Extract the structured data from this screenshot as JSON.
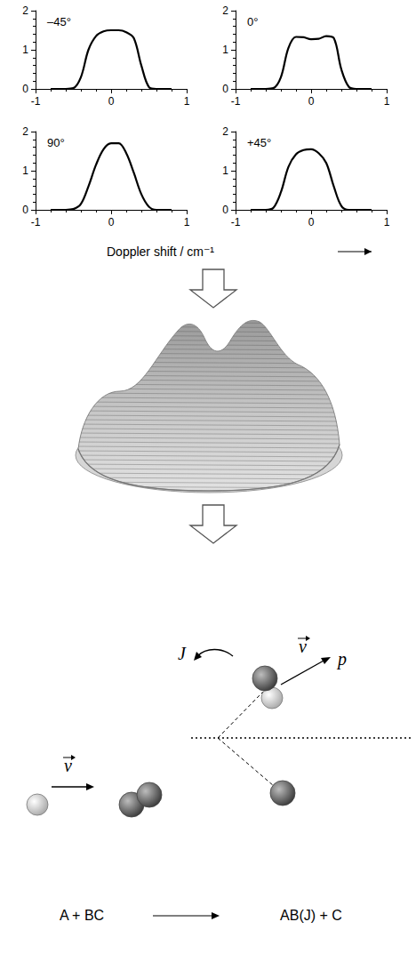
{
  "chart_data": [
    {
      "type": "line",
      "title": "–45°",
      "color": "#000000",
      "x": [
        -0.8,
        -0.7,
        -0.6,
        -0.5,
        -0.4,
        -0.3,
        -0.2,
        -0.1,
        0,
        0.1,
        0.2,
        0.3,
        0.4,
        0.5,
        0.6,
        0.7,
        0.8
      ],
      "values": [
        0,
        0,
        0,
        0.02,
        0.3,
        1.0,
        1.35,
        1.47,
        1.5,
        1.5,
        1.45,
        1.3,
        0.6,
        0.05,
        0,
        0,
        0
      ],
      "xlim": [
        -1,
        1
      ],
      "xticks": [
        -1,
        0,
        1
      ],
      "ylim": [
        0,
        2
      ],
      "yticks": [
        0,
        1,
        2
      ],
      "grid": false
    },
    {
      "type": "line",
      "title": "0°",
      "color": "#000000",
      "x": [
        -0.8,
        -0.7,
        -0.6,
        -0.5,
        -0.4,
        -0.3,
        -0.2,
        -0.1,
        0,
        0.1,
        0.2,
        0.3,
        0.4,
        0.5,
        0.6,
        0.7,
        0.8
      ],
      "values": [
        0,
        0,
        0,
        0.02,
        0.3,
        1.05,
        1.33,
        1.32,
        1.27,
        1.28,
        1.35,
        1.3,
        0.5,
        0.05,
        0,
        0,
        0
      ],
      "xlim": [
        -1,
        1
      ],
      "xticks": [
        -1,
        0,
        1
      ],
      "ylim": [
        0,
        2
      ],
      "yticks": [
        0,
        1,
        2
      ],
      "grid": false
    },
    {
      "type": "line",
      "title": "90°",
      "color": "#000000",
      "x": [
        -0.8,
        -0.7,
        -0.6,
        -0.5,
        -0.4,
        -0.3,
        -0.2,
        -0.1,
        0,
        0.1,
        0.2,
        0.3,
        0.4,
        0.5,
        0.6,
        0.7,
        0.8
      ],
      "values": [
        0,
        0,
        0,
        0.02,
        0.15,
        0.6,
        1.15,
        1.55,
        1.7,
        1.7,
        1.45,
        0.95,
        0.4,
        0.08,
        0,
        0,
        0
      ],
      "xlim": [
        -1,
        1
      ],
      "xticks": [
        -1,
        0,
        1
      ],
      "ylim": [
        0,
        2
      ],
      "yticks": [
        0,
        1,
        2
      ],
      "grid": false
    },
    {
      "type": "line",
      "title": "+45°",
      "color": "#000000",
      "x": [
        -0.8,
        -0.7,
        -0.6,
        -0.5,
        -0.4,
        -0.3,
        -0.2,
        -0.1,
        0,
        0.1,
        0.2,
        0.3,
        0.4,
        0.5,
        0.6,
        0.7,
        0.8
      ],
      "values": [
        0,
        0,
        0,
        0.05,
        0.45,
        1.1,
        1.42,
        1.53,
        1.55,
        1.45,
        1.2,
        0.6,
        0.1,
        0,
        0,
        0,
        0
      ],
      "xlim": [
        -1,
        1
      ],
      "xticks": [
        -1,
        0,
        1
      ],
      "ylim": [
        0,
        2
      ],
      "yticks": [
        0,
        1,
        2
      ],
      "grid": false
    }
  ],
  "xlabel": "Doppler shift / cm⁻¹",
  "diagram": {
    "rotation_label": "J",
    "velocity_in_label": "v",
    "velocity_out_label": "v",
    "product_label": "p",
    "reactants": "A + BC",
    "products": "AB(J) + C"
  }
}
